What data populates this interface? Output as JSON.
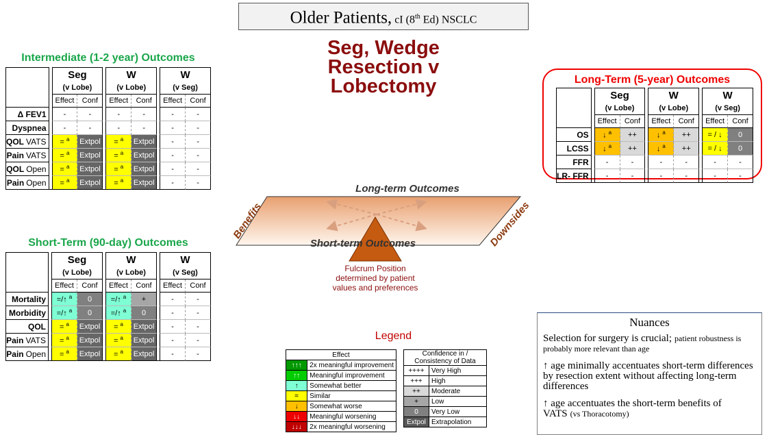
{
  "header": {
    "main": "Older Patients,",
    "sub1": "cI (8",
    "sup": "th",
    "sub2": "Ed) NSCLC"
  },
  "center_title": [
    "Seg, Wedge",
    "Resection v",
    "Lobectomy"
  ],
  "intermediate": {
    "title": "Intermediate (1-2 year) Outcomes",
    "groups": [
      {
        "name": "Seg",
        "sub": "(v Lobe)"
      },
      {
        "name": "W",
        "sub": "(v Lobe)"
      },
      {
        "name": "W",
        "sub": "(v Seg)"
      }
    ],
    "subcols": [
      "Effect",
      "Conf"
    ],
    "rows": [
      {
        "label": "Δ FEV1",
        "cells": [
          {
            "text": "-"
          },
          {
            "text": "-"
          },
          {
            "text": "-"
          },
          {
            "text": "-"
          },
          {
            "text": "-"
          },
          {
            "text": "-"
          }
        ]
      },
      {
        "label": "Dyspnea",
        "cells": [
          {
            "text": "-"
          },
          {
            "text": "-"
          },
          {
            "text": "-"
          },
          {
            "text": "-"
          },
          {
            "text": "-"
          },
          {
            "text": "-"
          }
        ]
      },
      {
        "label": "QOL",
        "label2": "VATS",
        "cells": [
          {
            "text": "=",
            "sup": "a",
            "fill": "#ffff00"
          },
          {
            "text": "Extpol",
            "fill": "#666666"
          },
          {
            "text": "=",
            "sup": "a",
            "fill": "#ffff00"
          },
          {
            "text": "Extpol",
            "fill": "#666666"
          },
          {
            "text": "-"
          },
          {
            "text": "-"
          }
        ]
      },
      {
        "label": "Pain",
        "label2": "VATS",
        "cells": [
          {
            "text": "=",
            "sup": "a",
            "fill": "#ffff00"
          },
          {
            "text": "Extpol",
            "fill": "#666666"
          },
          {
            "text": "=",
            "sup": "a",
            "fill": "#ffff00"
          },
          {
            "text": "Extpol",
            "fill": "#666666"
          },
          {
            "text": "-"
          },
          {
            "text": "-"
          }
        ]
      },
      {
        "label": "QOL",
        "label2": "Open",
        "cells": [
          {
            "text": "=",
            "sup": "a",
            "fill": "#ffff00"
          },
          {
            "text": "Extpol",
            "fill": "#666666"
          },
          {
            "text": "=",
            "sup": "a",
            "fill": "#ffff00"
          },
          {
            "text": "Extpol",
            "fill": "#666666"
          },
          {
            "text": "-"
          },
          {
            "text": "-"
          }
        ]
      },
      {
        "label": "Pain",
        "label2": "Open",
        "cells": [
          {
            "text": "=",
            "sup": "a",
            "fill": "#ffff00"
          },
          {
            "text": "Extpol",
            "fill": "#666666"
          },
          {
            "text": "=",
            "sup": "a",
            "fill": "#ffff00"
          },
          {
            "text": "Extpol",
            "fill": "#666666"
          },
          {
            "text": "-"
          },
          {
            "text": "-"
          }
        ]
      }
    ]
  },
  "short_term": {
    "title": "Short-Term (90-day) Outcomes",
    "groups": [
      {
        "name": "Seg",
        "sub": "(v Lobe)"
      },
      {
        "name": "W",
        "sub": "(v Lobe)"
      },
      {
        "name": "W",
        "sub": "(v Seg)"
      }
    ],
    "subcols": [
      "Effect",
      "Conf"
    ],
    "rows": [
      {
        "label": "Mortality",
        "cells": [
          {
            "text": "=/↑",
            "sup": "a",
            "fill": "#7fffd4"
          },
          {
            "text": "0",
            "fill": "#808080"
          },
          {
            "text": "=/↑",
            "sup": "a",
            "fill": "#7fffd4"
          },
          {
            "text": "+",
            "fill": "#a6a6a6"
          },
          {
            "text": "-"
          },
          {
            "text": "-"
          }
        ]
      },
      {
        "label": "Morbidity",
        "cells": [
          {
            "text": "=/↑",
            "sup": "a",
            "fill": "#7fffd4"
          },
          {
            "text": "0",
            "fill": "#808080"
          },
          {
            "text": "=/↑",
            "sup": "a",
            "fill": "#7fffd4"
          },
          {
            "text": "0",
            "fill": "#808080"
          },
          {
            "text": "-"
          },
          {
            "text": "-"
          }
        ]
      },
      {
        "label": "QOL",
        "cells": [
          {
            "text": "=",
            "sup": "a",
            "fill": "#ffff00"
          },
          {
            "text": "Extpol",
            "fill": "#666666"
          },
          {
            "text": "=",
            "sup": "a",
            "fill": "#ffff00"
          },
          {
            "text": "Extpol",
            "fill": "#666666"
          },
          {
            "text": "-"
          },
          {
            "text": "-"
          }
        ]
      },
      {
        "label": "Pain",
        "label2": "VATS",
        "cells": [
          {
            "text": "=",
            "sup": "a",
            "fill": "#ffff00"
          },
          {
            "text": "Extpol",
            "fill": "#666666"
          },
          {
            "text": "=",
            "sup": "a",
            "fill": "#ffff00"
          },
          {
            "text": "Extpol",
            "fill": "#666666"
          },
          {
            "text": "-"
          },
          {
            "text": "-"
          }
        ]
      },
      {
        "label": "Pain",
        "label2": "Open",
        "cells": [
          {
            "text": "=",
            "sup": "a",
            "fill": "#ffff00"
          },
          {
            "text": "Extpol",
            "fill": "#666666"
          },
          {
            "text": "=",
            "sup": "a",
            "fill": "#ffff00"
          },
          {
            "text": "Extpol",
            "fill": "#666666"
          },
          {
            "text": "-"
          },
          {
            "text": "-"
          }
        ]
      }
    ]
  },
  "long_term": {
    "title": "Long-Term (5-year) Outcomes",
    "groups": [
      {
        "name": "Seg",
        "sub": "(v Lobe)"
      },
      {
        "name": "W",
        "sub": "(v Lobe)"
      },
      {
        "name": "W",
        "sub": "(v Seg)"
      }
    ],
    "subcols": [
      "Effect",
      "Conf"
    ],
    "rows": [
      {
        "label": "OS",
        "cells": [
          {
            "text": "↓",
            "sup": "a",
            "fill": "#ffc000"
          },
          {
            "text": "++",
            "fill": "#d9d9d9"
          },
          {
            "text": "↓",
            "sup": "a",
            "fill": "#ffc000"
          },
          {
            "text": "++",
            "fill": "#d9d9d9"
          },
          {
            "text": "= / ↓",
            "fill": "#ffff00"
          },
          {
            "text": "0",
            "fill": "#808080"
          }
        ]
      },
      {
        "label": "LCSS",
        "cells": [
          {
            "text": "↓",
            "sup": "a",
            "fill": "#ffc000"
          },
          {
            "text": "++",
            "fill": "#d9d9d9"
          },
          {
            "text": "↓",
            "sup": "a",
            "fill": "#ffc000"
          },
          {
            "text": "++",
            "fill": "#d9d9d9"
          },
          {
            "text": "= / ↓",
            "fill": "#ffff00"
          },
          {
            "text": "0",
            "fill": "#808080"
          }
        ]
      },
      {
        "label": "FFR",
        "cells": [
          {
            "text": "-"
          },
          {
            "text": "-"
          },
          {
            "text": "-"
          },
          {
            "text": "-"
          },
          {
            "text": "-"
          },
          {
            "text": "-"
          }
        ]
      },
      {
        "label": "LR- FFR",
        "cells": [
          {
            "text": "-"
          },
          {
            "text": "-"
          },
          {
            "text": "-"
          },
          {
            "text": "-"
          },
          {
            "text": "-"
          },
          {
            "text": "-"
          }
        ]
      }
    ]
  },
  "seesaw": {
    "top": "Long-term Outcomes",
    "bottom": "Short-term Outcomes",
    "left": "Benefits",
    "right": "Downsides",
    "fulcrum": [
      "Fulcrum Position",
      "determined by patient",
      "values and preferences"
    ]
  },
  "legend": {
    "title": "Legend",
    "effect": {
      "title": "Effect",
      "rows": [
        {
          "sym": "↑↑↑",
          "label": "2x meaningful improvement",
          "fill": "#009900"
        },
        {
          "sym": "↑↑",
          "label": "Meaningful improvement",
          "fill": "#00cc00"
        },
        {
          "sym": "↑",
          "label": "Somewhat better",
          "fill": "#7fffd4"
        },
        {
          "sym": "=",
          "label": "Similar",
          "fill": "#ffff00"
        },
        {
          "sym": "↓",
          "label": "Somewhat worse",
          "fill": "#ffc000"
        },
        {
          "sym": "↓↓",
          "label": "Meaningful worsening",
          "fill": "#ee0000"
        },
        {
          "sym": "↓↓↓",
          "label": "2x meaningful worsening",
          "fill": "#c00000"
        }
      ]
    },
    "confidence": {
      "title": "Confidence in / Consistency of Data",
      "rows": [
        {
          "sym": "++++",
          "label": "Very High",
          "fill": "#ffffff"
        },
        {
          "sym": "+++",
          "label": "High",
          "fill": "#ffffff"
        },
        {
          "sym": "++",
          "label": "Moderate",
          "fill": "#d9d9d9"
        },
        {
          "sym": "+",
          "label": "Low",
          "fill": "#a6a6a6"
        },
        {
          "sym": "0",
          "label": "Very Low",
          "fill": "#808080"
        },
        {
          "sym": "Extpol",
          "label": "Extrapolation",
          "fill": "#595959"
        }
      ]
    }
  },
  "nuances": {
    "title": "Nuances",
    "items": [
      {
        "main": "Selection for surgery is crucial;",
        "small": "patient robustness is probably more relevant than age"
      },
      {
        "main": "↑ age minimally accentuates short-term differences by resection extent without affecting long-term differences"
      },
      {
        "main": "↑ age accentuates the short-term benefits of VATS",
        "small": "(vs Thoracotomy)"
      }
    ]
  }
}
